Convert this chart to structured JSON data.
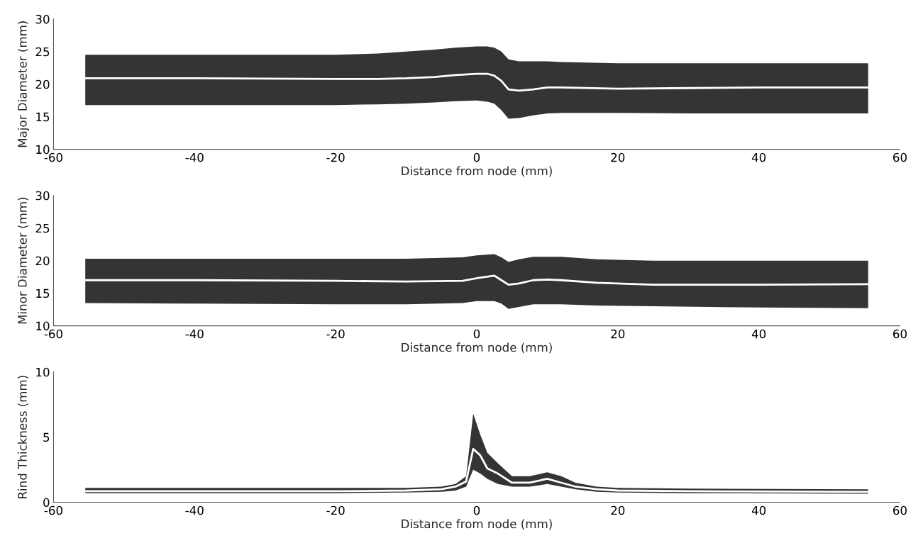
{
  "chart_data": [
    {
      "type": "line",
      "xlabel": "Distance from node (mm)",
      "ylabel": "Major Diameter (mm)",
      "xlim": [
        -60,
        60
      ],
      "xticks": [
        -60,
        -40,
        -20,
        0,
        20,
        40,
        60
      ],
      "ylim": [
        10,
        30
      ],
      "yticks": [
        10,
        15,
        20,
        25,
        30
      ],
      "series": [
        {
          "color": "#ffffff",
          "x": [
            -55.5,
            -40,
            -20,
            -14,
            -10,
            -6,
            -3,
            0,
            1.5,
            2.5,
            3.5,
            4.5,
            6,
            8,
            10,
            12,
            20,
            30,
            40,
            55.5
          ],
          "values": [
            20.9,
            20.9,
            20.8,
            20.8,
            20.9,
            21.1,
            21.4,
            21.6,
            21.6,
            21.3,
            20.5,
            19.2,
            19.0,
            19.2,
            19.5,
            19.5,
            19.3,
            19.4,
            19.5,
            19.5
          ],
          "upper": [
            24.5,
            24.5,
            24.5,
            24.7,
            25,
            25.3,
            25.6,
            25.8,
            25.8,
            25.6,
            25,
            23.8,
            23.5,
            23.5,
            23.5,
            23.4,
            23.2,
            23.2,
            23.2,
            23.2
          ],
          "lower": [
            16.8,
            16.8,
            16.8,
            16.9,
            17,
            17.2,
            17.4,
            17.5,
            17.3,
            17,
            16,
            14.7,
            14.8,
            15.2,
            15.5,
            15.6,
            15.6,
            15.5,
            15.5,
            15.5
          ]
        }
      ]
    },
    {
      "type": "line",
      "xlabel": "Distance from node (mm)",
      "ylabel": "Minor Diameter (mm)",
      "xlim": [
        -60,
        60
      ],
      "xticks": [
        -60,
        -40,
        -20,
        0,
        20,
        40,
        60
      ],
      "ylim": [
        10,
        30
      ],
      "yticks": [
        10,
        15,
        20,
        25,
        30
      ],
      "series": [
        {
          "color": "#ffffff",
          "x": [
            -55.5,
            -40,
            -20,
            -10,
            -2,
            0,
            2.5,
            3.5,
            4.5,
            6,
            8,
            10,
            12,
            17,
            25,
            40,
            55.5
          ],
          "values": [
            17.0,
            17.0,
            16.9,
            16.8,
            16.9,
            17.3,
            17.7,
            17.0,
            16.3,
            16.5,
            17.0,
            17.1,
            17.0,
            16.6,
            16.3,
            16.3,
            16.4
          ],
          "upper": [
            20.3,
            20.3,
            20.3,
            20.3,
            20.5,
            20.8,
            21.0,
            20.5,
            19.8,
            20.2,
            20.6,
            20.6,
            20.6,
            20.2,
            20.0,
            20.0,
            20.0
          ],
          "lower": [
            13.5,
            13.4,
            13.3,
            13.3,
            13.5,
            13.8,
            13.8,
            13.4,
            12.6,
            12.9,
            13.3,
            13.3,
            13.3,
            13.1,
            13.0,
            12.8,
            12.7
          ]
        }
      ]
    },
    {
      "type": "line",
      "xlabel": "Distance from node (mm)",
      "ylabel": "Rind Thickness (mm)",
      "xlim": [
        -60,
        60
      ],
      "xticks": [
        -60,
        -40,
        -20,
        0,
        20,
        40,
        60
      ],
      "ylim": [
        0,
        10
      ],
      "yticks": [
        0,
        5,
        10
      ],
      "series": [
        {
          "color": "#ffffff",
          "x": [
            -55.5,
            -40,
            -20,
            -10,
            -5,
            -3,
            -1.5,
            -0.5,
            0.5,
            1.5,
            3,
            5,
            7.5,
            10,
            12,
            14,
            17,
            20,
            30,
            55.5
          ],
          "values": [
            0.85,
            0.85,
            0.85,
            0.9,
            1.0,
            1.2,
            1.6,
            4.1,
            3.6,
            2.6,
            2.2,
            1.5,
            1.5,
            1.8,
            1.5,
            1.2,
            1.0,
            0.9,
            0.85,
            0.8
          ],
          "upper": [
            1.1,
            1.1,
            1.1,
            1.1,
            1.2,
            1.4,
            2.0,
            6.8,
            5.2,
            3.8,
            3.0,
            2.0,
            2.0,
            2.3,
            2.0,
            1.5,
            1.2,
            1.1,
            1.05,
            1.0
          ],
          "lower": [
            0.7,
            0.7,
            0.7,
            0.75,
            0.8,
            0.9,
            1.2,
            2.5,
            2.2,
            1.8,
            1.4,
            1.2,
            1.2,
            1.4,
            1.2,
            1.0,
            0.8,
            0.75,
            0.7,
            0.65
          ]
        }
      ]
    }
  ]
}
